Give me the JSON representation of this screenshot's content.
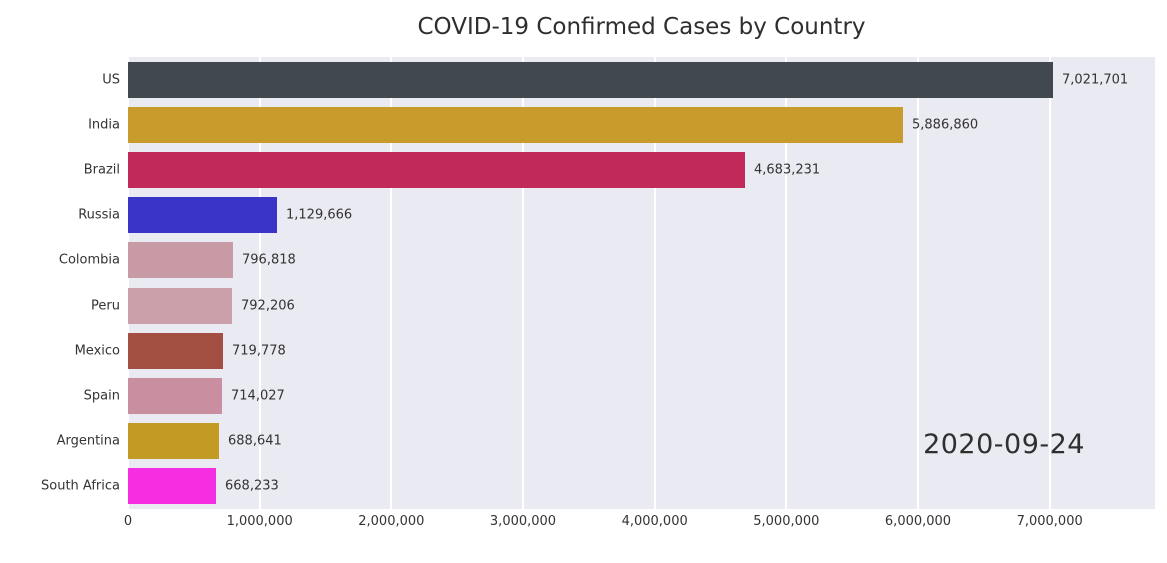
{
  "chart_data": {
    "type": "bar",
    "orientation": "horizontal",
    "title": "COVID-19 Confirmed Cases by Country",
    "date_label": "2020-09-24",
    "categories": [
      "US",
      "India",
      "Brazil",
      "Russia",
      "Colombia",
      "Peru",
      "Mexico",
      "Spain",
      "Argentina",
      "South Africa"
    ],
    "values": [
      7021701,
      5886860,
      4683231,
      1129666,
      796818,
      792206,
      719778,
      714027,
      688641,
      668233
    ],
    "value_labels": [
      "7,021,701",
      "5,886,860",
      "4,683,231",
      "1,129,666",
      "796,818",
      "792,206",
      "719,778",
      "714,027",
      "688,641",
      "668,233"
    ],
    "bar_colors": [
      "#41484e",
      "#c79c2c",
      "#c2295b",
      "#3a34c8",
      "#c89aa5",
      "#cba0aa",
      "#a34f42",
      "#c98fa0",
      "#c39a23",
      "#f62ee1"
    ],
    "x_ticks": [
      {
        "value": 0,
        "label": "0"
      },
      {
        "value": 1000000,
        "label": "1,000,000"
      },
      {
        "value": 2000000,
        "label": "2,000,000"
      },
      {
        "value": 3000000,
        "label": "3,000,000"
      },
      {
        "value": 4000000,
        "label": "4,000,000"
      },
      {
        "value": 5000000,
        "label": "5,000,000"
      },
      {
        "value": 6000000,
        "label": "6,000,000"
      },
      {
        "value": 7000000,
        "label": "7,000,000"
      }
    ],
    "xlim": [
      0,
      7800000
    ],
    "plot_bg": "#eaeaf2",
    "grid_color": "#ffffff",
    "text_color": "#333333",
    "legend": "none",
    "grid": "vertical-white-on-gray"
  }
}
